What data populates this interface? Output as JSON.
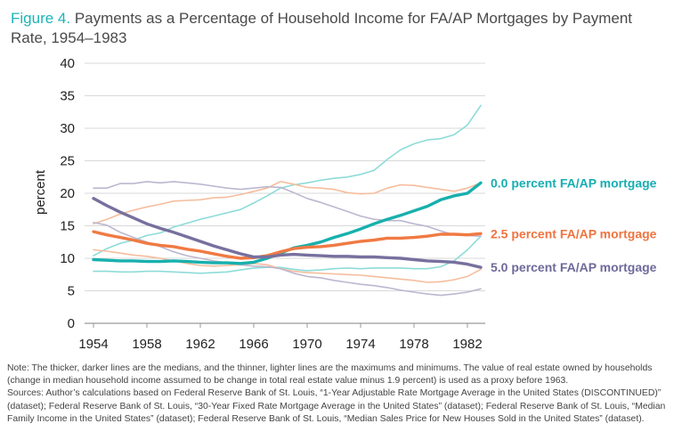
{
  "title": {
    "figure_label": "Figure 4.",
    "text": "Payments as a Percentage of Household Income for FA/AP Mortgages by Payment Rate, 1954–1983"
  },
  "note": "Note: The thicker, darker lines are the medians, and the thinner, lighter lines are the maximums and minimums. The value of real estate owned by households (change in median household income assumed to be change in total real estate value minus 1.9 percent) is used as a proxy before 1963.",
  "sources": "Sources: Author’s calculations based on Federal Reserve Bank of St. Louis, “1-Year Adjustable Rate Mortgage Average in the United States (DISCONTINUED)” (dataset); Federal Reserve Bank of St. Louis, “30-Year Fixed Rate Mortgage Average in the United States” (dataset); Federal Reserve Bank of St. Louis, “Median Family Income in the United States” (dataset); Federal Reserve Bank of St. Louis, “Median Sales Price for New Houses Sold in the United States” (dataset).",
  "chart_data": {
    "type": "line",
    "title": "Payments as a Percentage of Household Income for FA/AP Mortgages by Payment Rate, 1954–1983",
    "ylabel": "percent",
    "xlabel": "",
    "xlim": [
      1954,
      1983
    ],
    "ylim": [
      0,
      40
    ],
    "x_ticks": [
      1954,
      1958,
      1962,
      1966,
      1970,
      1974,
      1978,
      1982
    ],
    "y_ticks": [
      0,
      5,
      10,
      15,
      20,
      25,
      30,
      35,
      40
    ],
    "grid": "horizontal",
    "x": [
      1954,
      1955,
      1956,
      1957,
      1958,
      1959,
      1960,
      1961,
      1962,
      1963,
      1964,
      1965,
      1966,
      1967,
      1968,
      1969,
      1970,
      1971,
      1972,
      1973,
      1974,
      1975,
      1976,
      1977,
      1978,
      1979,
      1980,
      1981,
      1982,
      1983
    ],
    "series": [
      {
        "name": "0.0 percent FA/AP mortgage",
        "role": "median",
        "color": "#17b0ad",
        "label_color": "#17aeb2",
        "values": [
          9.8,
          9.7,
          9.6,
          9.6,
          9.5,
          9.5,
          9.6,
          9.5,
          9.4,
          9.3,
          9.3,
          9.2,
          9.4,
          10.0,
          10.8,
          11.6,
          12.0,
          12.5,
          13.2,
          13.8,
          14.5,
          15.3,
          16.0,
          16.6,
          17.3,
          18.0,
          19.0,
          19.6,
          20.0,
          21.6
        ]
      },
      {
        "name": "0.0 percent max",
        "role": "max",
        "color": "#8ddcd8",
        "values": [
          10.4,
          11.5,
          12.3,
          12.8,
          13.5,
          13.9,
          14.8,
          15.4,
          16.0,
          16.5,
          17.0,
          17.5,
          18.5,
          19.6,
          20.8,
          21.3,
          21.6,
          22.0,
          22.3,
          22.5,
          22.9,
          23.5,
          25.2,
          26.7,
          27.6,
          28.2,
          28.4,
          29.0,
          30.5,
          33.5
        ]
      },
      {
        "name": "0.0 percent min",
        "role": "min",
        "color": "#8ddcd8",
        "values": [
          8.0,
          8.0,
          7.9,
          7.9,
          8.0,
          8.0,
          7.9,
          7.8,
          7.7,
          7.8,
          7.9,
          8.2,
          8.5,
          8.6,
          8.6,
          8.3,
          8.1,
          8.2,
          8.4,
          8.5,
          8.4,
          8.5,
          8.5,
          8.5,
          8.4,
          8.4,
          8.7,
          9.6,
          11.3,
          13.4
        ]
      },
      {
        "name": "2.5 percent FA/AP mortgage",
        "role": "median",
        "color": "#f07a43",
        "label_color": "#ef7440",
        "values": [
          14.1,
          13.6,
          13.2,
          12.8,
          12.3,
          12.0,
          11.8,
          11.4,
          11.1,
          10.7,
          10.3,
          10.0,
          10.1,
          10.4,
          11.0,
          11.5,
          11.7,
          11.8,
          12.0,
          12.3,
          12.6,
          12.8,
          13.1,
          13.1,
          13.2,
          13.4,
          13.7,
          13.7,
          13.6,
          13.8
        ]
      },
      {
        "name": "2.5 percent max",
        "role": "max",
        "color": "#f6bd9d",
        "values": [
          15.3,
          16.0,
          16.8,
          17.4,
          17.9,
          18.3,
          18.8,
          18.9,
          19.0,
          19.3,
          19.4,
          19.8,
          20.3,
          20.8,
          21.8,
          21.4,
          20.9,
          20.8,
          20.6,
          20.1,
          19.9,
          20.0,
          20.8,
          21.3,
          21.2,
          20.9,
          20.6,
          20.3,
          20.8,
          21.6
        ]
      },
      {
        "name": "2.5 percent min",
        "role": "min",
        "color": "#f6bd9d",
        "values": [
          11.3,
          11.1,
          10.8,
          10.5,
          10.3,
          10.0,
          9.6,
          9.2,
          8.9,
          8.8,
          8.9,
          9.0,
          9.2,
          9.0,
          8.4,
          8.0,
          7.8,
          7.7,
          7.6,
          7.5,
          7.4,
          7.2,
          7.0,
          6.8,
          6.6,
          6.3,
          6.4,
          6.7,
          7.2,
          8.3
        ]
      },
      {
        "name": "5.0 percent FA/AP mortgage",
        "role": "median",
        "color": "#77709e",
        "label_color": "#6f699b",
        "values": [
          19.2,
          18.1,
          17.1,
          16.2,
          15.3,
          14.6,
          14.0,
          13.3,
          12.6,
          11.9,
          11.3,
          10.7,
          10.2,
          10.2,
          10.5,
          10.6,
          10.5,
          10.4,
          10.3,
          10.3,
          10.2,
          10.2,
          10.1,
          10.0,
          9.8,
          9.6,
          9.5,
          9.4,
          9.1,
          8.6
        ]
      },
      {
        "name": "5.0 percent max",
        "role": "max",
        "color": "#bcb7cf",
        "values": [
          20.8,
          20.8,
          21.5,
          21.5,
          21.8,
          21.6,
          21.8,
          21.6,
          21.4,
          21.1,
          20.8,
          20.6,
          20.8,
          21.0,
          20.9,
          20.1,
          19.2,
          18.6,
          17.9,
          17.2,
          16.5,
          16.0,
          15.8,
          15.8,
          15.3,
          14.9,
          14.2,
          13.6,
          13.5,
          13.4
        ]
      },
      {
        "name": "5.0 percent min",
        "role": "min",
        "color": "#bcb7cf",
        "values": [
          15.5,
          15.1,
          14.0,
          13.2,
          12.5,
          11.8,
          11.0,
          10.4,
          10.0,
          9.6,
          9.3,
          9.0,
          8.8,
          8.7,
          8.4,
          7.7,
          7.2,
          7.0,
          6.6,
          6.3,
          6.0,
          5.8,
          5.5,
          5.1,
          4.8,
          4.5,
          4.3,
          4.5,
          4.8,
          5.3
        ]
      }
    ]
  }
}
